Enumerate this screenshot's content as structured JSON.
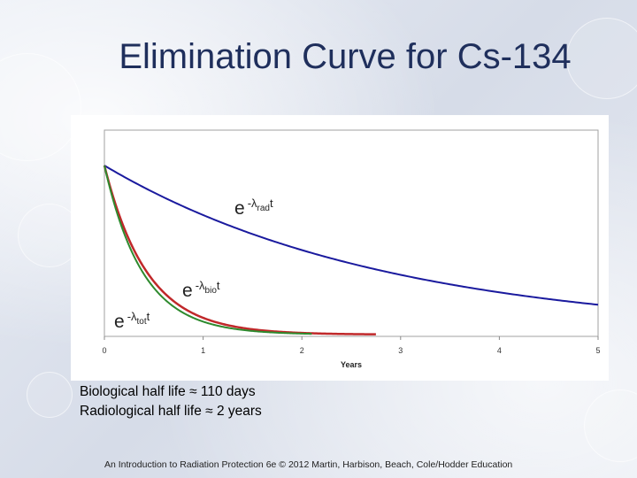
{
  "slide": {
    "title": "Elimination Curve for Cs-134",
    "captions": [
      "Biological half life ≈ 110 days",
      "Radiological half life ≈ 2 years"
    ],
    "footer": "An Introduction to Radiation Protection 6e © 2012 Martin, Harbison, Beach, Cole/Hodder Education"
  },
  "colors": {
    "radiological": "#1a1a9e",
    "biological": "#c0282a",
    "total": "#2e8a2e",
    "title": "#1f2f5c"
  },
  "chart_data": {
    "type": "line",
    "title": "",
    "xlabel": "Years",
    "ylabel": "",
    "xlim": [
      0,
      5
    ],
    "ylim": [
      0,
      1
    ],
    "x_ticks": [
      "0",
      "1",
      "2",
      "3",
      "4",
      "5"
    ],
    "grid": false,
    "series": [
      {
        "key": "rad",
        "name": "radiological",
        "half_life_years": 2.0,
        "label_base": "e",
        "label_sup": "-λ",
        "label_sub": "rad",
        "label_t": "t"
      },
      {
        "key": "bio",
        "name": "biological",
        "half_life_years": 0.3,
        "label_base": "e",
        "label_sup": "-λ",
        "label_sub": "bio",
        "label_t": "t"
      },
      {
        "key": "tot",
        "name": "total",
        "half_life_years": 0.27,
        "label_base": "e",
        "label_sup": "-λ",
        "label_sub": "tot",
        "label_t": "t"
      }
    ]
  }
}
